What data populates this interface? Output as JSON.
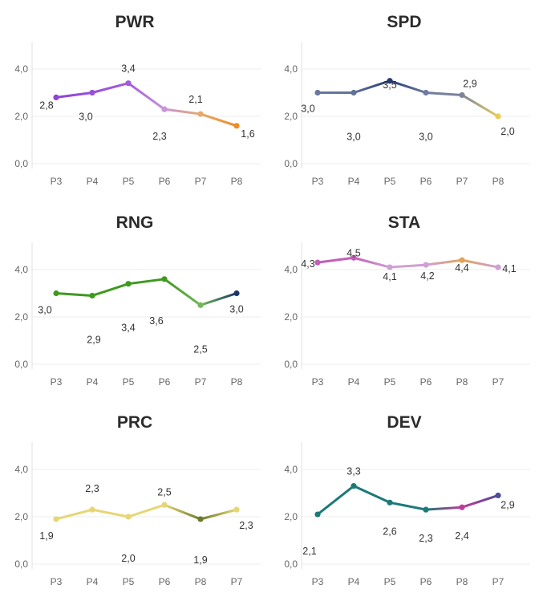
{
  "chart_data": [
    {
      "type": "line",
      "title": "PWR",
      "categories": [
        "P3",
        "P4",
        "P5",
        "P6",
        "P7",
        "P8"
      ],
      "values": [
        2.8,
        3.0,
        3.4,
        2.3,
        2.1,
        1.6
      ],
      "value_labels": [
        "2,8",
        "3,0",
        "3,4",
        "2,3",
        "2,1",
        "1,6"
      ],
      "y_ticks": [
        "0,0",
        "2,0",
        "4,0"
      ],
      "ylim": [
        0,
        5
      ],
      "point_colors": [
        "#8e44d6",
        "#9a4fda",
        "#a35cdb",
        "#c994d8",
        "#e8a86a",
        "#ee8c24"
      ],
      "grid": true
    },
    {
      "type": "line",
      "title": "SPD",
      "categories": [
        "P3",
        "P4",
        "P5",
        "P6",
        "P7",
        "P8"
      ],
      "values": [
        3.0,
        3.0,
        3.5,
        3.0,
        2.9,
        2.0
      ],
      "value_labels": [
        "3,0",
        "3,0",
        "3,5",
        "3,0",
        "2,9",
        "2,0"
      ],
      "y_ticks": [
        "0,0",
        "2,0",
        "4,0"
      ],
      "ylim": [
        0,
        5
      ],
      "point_colors": [
        "#68799f",
        "#627297",
        "#243a73",
        "#6e7ca0",
        "#7e849a",
        "#e6cd58"
      ],
      "grid": true
    },
    {
      "type": "line",
      "title": "RNG",
      "categories": [
        "P3",
        "P4",
        "P5",
        "P6",
        "P7",
        "P8"
      ],
      "values": [
        3.0,
        2.9,
        3.4,
        3.6,
        2.5,
        3.0
      ],
      "value_labels": [
        "3,0",
        "2,9",
        "3,4",
        "3,6",
        "2,5",
        "3,0"
      ],
      "y_ticks": [
        "0,0",
        "2,0",
        "4,0"
      ],
      "ylim": [
        0,
        5
      ],
      "point_colors": [
        "#3e9a1e",
        "#3e9a1e",
        "#3e9a1e",
        "#3e9a1e",
        "#72b85a",
        "#1c3668"
      ],
      "grid": true
    },
    {
      "type": "line",
      "title": "STA",
      "categories": [
        "P3",
        "P4",
        "P5",
        "P6",
        "P8",
        "P7"
      ],
      "values": [
        4.3,
        4.5,
        4.1,
        4.2,
        4.4,
        4.1
      ],
      "value_labels": [
        "4,3",
        "4,5",
        "4,1",
        "4,2",
        "4,4",
        "4,1"
      ],
      "y_ticks": [
        "0,0",
        "2,0",
        "4,0"
      ],
      "ylim": [
        0,
        5
      ],
      "point_colors": [
        "#c25fb8",
        "#c25fb8",
        "#cfa0d4",
        "#cfa0d4",
        "#e4a158",
        "#cfa0d4"
      ],
      "grid": true
    },
    {
      "type": "line",
      "title": "PRC",
      "categories": [
        "P3",
        "P4",
        "P5",
        "P6",
        "P8",
        "P7"
      ],
      "values": [
        1.9,
        2.3,
        2.0,
        2.5,
        1.9,
        2.3
      ],
      "value_labels": [
        "1,9",
        "2,3",
        "2,0",
        "2,5",
        "1,9",
        "2,3"
      ],
      "y_ticks": [
        "0,0",
        "2,0",
        "4,0"
      ],
      "ylim": [
        0,
        5
      ],
      "point_colors": [
        "#e6d675",
        "#e6d675",
        "#e6d675",
        "#e6d675",
        "#6b7a2c",
        "#e6d675"
      ],
      "grid": true
    },
    {
      "type": "line",
      "title": "DEV",
      "categories": [
        "P3",
        "P4",
        "P5",
        "P6",
        "P8",
        "P7"
      ],
      "values": [
        2.1,
        3.3,
        2.6,
        2.3,
        2.4,
        2.9
      ],
      "value_labels": [
        "2,1",
        "3,3",
        "2,6",
        "2,3",
        "2,4",
        "2,9"
      ],
      "y_ticks": [
        "0,0",
        "2,0",
        "4,0"
      ],
      "ylim": [
        0,
        5
      ],
      "point_colors": [
        "#1b7a78",
        "#1b7a78",
        "#1b7a78",
        "#1b7a78",
        "#c03b9a",
        "#4f4a9a"
      ],
      "grid": true
    }
  ]
}
